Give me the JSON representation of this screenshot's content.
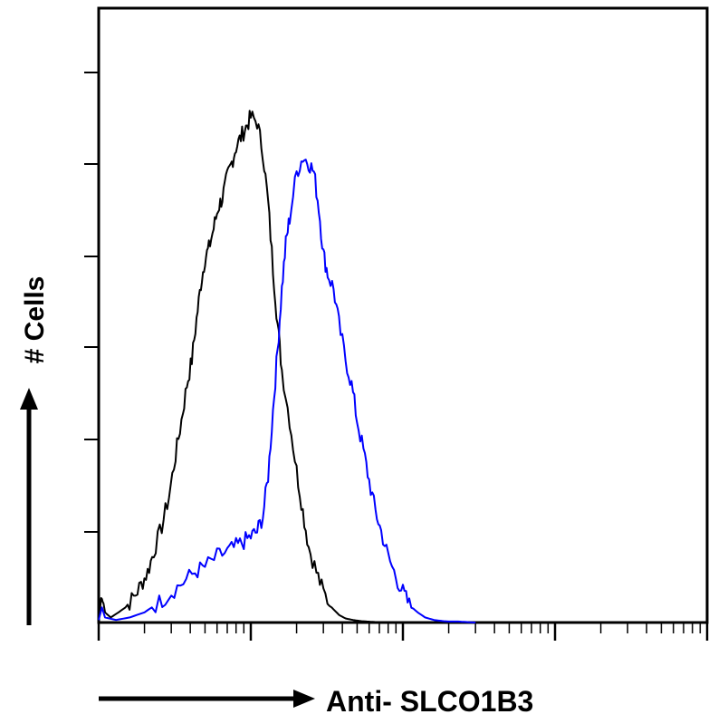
{
  "chart_data": {
    "type": "line",
    "title": "",
    "xlabel": "Anti- SLCO1B3",
    "ylabel": "# Cells",
    "x_scale": "log",
    "xlim": [
      1,
      10000
    ],
    "ylim": [
      0,
      100
    ],
    "grid": false,
    "legend": "none",
    "series": [
      {
        "color": "#000000",
        "x": [
          1,
          1.05,
          1.1,
          1.2,
          1.35,
          1.5,
          1.7,
          1.9,
          2.1,
          2.3,
          2.6,
          2.9,
          3.2,
          3.5,
          3.8,
          4.1,
          4.4,
          4.7,
          5.0,
          5.3,
          5.7,
          6.1,
          6.5,
          7.0,
          7.5,
          8.0,
          8.6,
          9.3,
          10,
          11,
          12,
          13,
          14,
          15,
          16,
          18,
          20,
          22,
          24,
          27,
          30,
          34,
          38,
          42,
          47,
          52,
          58,
          65,
          70
        ],
        "y": [
          0.5,
          6,
          2,
          1,
          2,
          3,
          5,
          7.5,
          10,
          14,
          19,
          25,
          33,
          40,
          47,
          52,
          60,
          67,
          72,
          74,
          78,
          82,
          84,
          88,
          91,
          94,
          96,
          98,
          100,
          99,
          93,
          83,
          70,
          59,
          50,
          40,
          30,
          22,
          15,
          10,
          6,
          3,
          1.5,
          0.8,
          0.5,
          0.3,
          0.2,
          0.1,
          0
        ]
      },
      {
        "color": "#0000ff",
        "x": [
          1,
          1.05,
          1.1,
          1.3,
          1.6,
          2.0,
          2.5,
          3.0,
          3.6,
          4.3,
          5.0,
          6.0,
          7.0,
          8.0,
          9.0,
          10,
          11,
          12,
          13,
          14,
          15,
          16,
          17,
          18,
          20,
          22,
          24,
          26,
          28,
          30,
          32,
          35,
          38,
          42,
          46,
          50,
          55,
          60,
          66,
          72,
          80,
          90,
          100,
          110,
          125,
          140,
          160,
          180,
          200,
          230,
          260,
          300
        ],
        "y": [
          0.5,
          3,
          1,
          0.5,
          1,
          2,
          4,
          6,
          8,
          10,
          11,
          13,
          14,
          15,
          16,
          17,
          18,
          21,
          29,
          42,
          54,
          66,
          75,
          80,
          89,
          92,
          91,
          89,
          82,
          73,
          69,
          66,
          59,
          52,
          47,
          40,
          34,
          28,
          22,
          18,
          13,
          9,
          6,
          3.5,
          2,
          1,
          0.5,
          0.3,
          0.2,
          0.2,
          0.1,
          0
        ]
      }
    ]
  }
}
